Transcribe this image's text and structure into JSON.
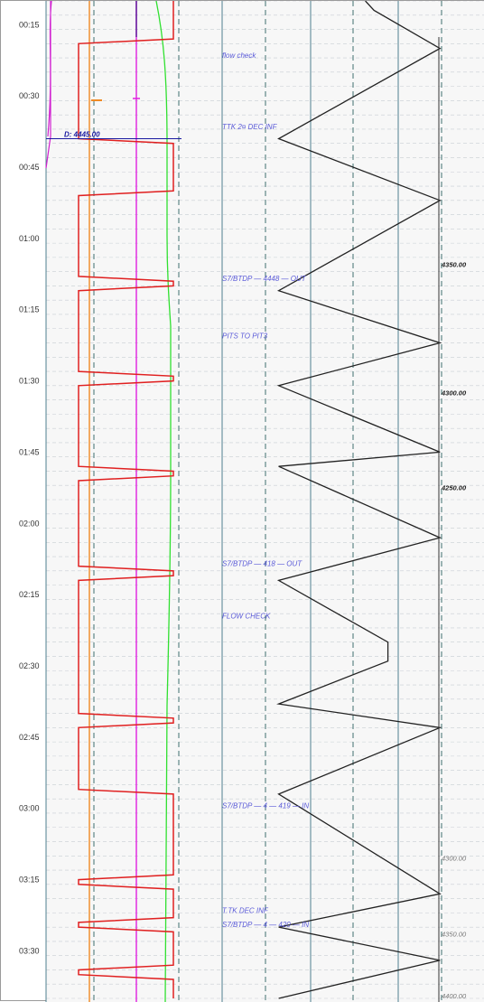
{
  "chart_data": {
    "type": "line",
    "title": "",
    "xlabel": "",
    "ylabel": "",
    "time_axis": {
      "start": "00:10",
      "end": "03:40",
      "tick_labels": [
        "00:15",
        "00:30",
        "00:45",
        "01:00",
        "01:15",
        "01:30",
        "01:45",
        "02:00",
        "02:15",
        "02:30",
        "02:45",
        "03:00",
        "03:15",
        "03:30"
      ]
    },
    "grid": true,
    "annotations": [
      {
        "time": "00:22",
        "text": "flow check"
      },
      {
        "time": "00:37",
        "text": "TTK 2¤ DEC INF"
      },
      {
        "time": "01:09",
        "text": "S7/BTDP — 4448 — OUT"
      },
      {
        "time": "01:21",
        "text": "PITS TO PIT3"
      },
      {
        "time": "02:09",
        "text": "S7/BTDP — 418 — OUT"
      },
      {
        "time": "02:20",
        "text": "FLOW CHECK"
      },
      {
        "time": "03:00",
        "text": "S7/BTDP — 4 — 419 — IN"
      },
      {
        "time": "03:22",
        "text": "T.TK DEC INF"
      },
      {
        "time": "03:25",
        "text": "S7/BTDP — 4 — 420 — IN"
      }
    ],
    "depth_labels": [
      {
        "time": "01:06",
        "text": "4350.00",
        "style": "bold"
      },
      {
        "time": "01:33",
        "text": "4300.00",
        "style": "bold"
      },
      {
        "time": "01:53",
        "text": "4250.00",
        "style": "bold"
      },
      {
        "time": "03:11",
        "text": "4300.00",
        "style": "light"
      },
      {
        "time": "03:27",
        "text": "4350.00",
        "style": "light"
      },
      {
        "time": "03:40",
        "text": "4400.00",
        "style": "light"
      }
    ],
    "marker": {
      "time": "00:39",
      "text": "D: 4445.00"
    },
    "series": [
      {
        "color": "#e02020",
        "x": [
          "00:10",
          "00:18",
          "00:19",
          "00:39",
          "00:40",
          "00:50",
          "00:51",
          "01:08",
          "01:09",
          "01:10",
          "01:11",
          "01:28",
          "01:29",
          "01:30",
          "01:31",
          "01:48",
          "01:49",
          "01:50",
          "01:51",
          "02:09",
          "02:10",
          "02:11",
          "02:12",
          "02:40",
          "02:41",
          "02:42",
          "02:43",
          "02:56",
          "02:57",
          "03:14",
          "03:15",
          "03:16",
          "03:17",
          "03:23",
          "03:24",
          "03:25",
          "03:26",
          "03:33",
          "03:34",
          "03:35",
          "03:36",
          "03:40"
        ],
        "values": [
          0.95,
          0.95,
          0.2,
          0.2,
          0.95,
          0.95,
          0.2,
          0.2,
          0.95,
          0.95,
          0.2,
          0.2,
          0.95,
          0.95,
          0.2,
          0.2,
          0.95,
          0.95,
          0.2,
          0.2,
          0.95,
          0.95,
          0.2,
          0.2,
          0.95,
          0.95,
          0.2,
          0.2,
          0.95,
          0.95,
          0.2,
          0.2,
          0.95,
          0.95,
          0.2,
          0.2,
          0.95,
          0.95,
          0.2,
          0.2,
          0.95,
          0.95
        ]
      },
      {
        "color": "#222222",
        "x": [
          "00:10",
          "00:12",
          "00:20",
          "00:39",
          "00:52",
          "01:11",
          "01:22",
          "01:31",
          "01:45",
          "01:48",
          "02:03",
          "02:12",
          "02:25",
          "02:29",
          "02:38",
          "02:43",
          "02:57",
          "03:18",
          "03:25",
          "03:32",
          "03:40"
        ],
        "values": [
          0.55,
          0.6,
          0.98,
          0.05,
          0.98,
          0.05,
          0.98,
          0.05,
          0.98,
          0.05,
          0.98,
          0.05,
          0.68,
          0.68,
          0.05,
          0.98,
          0.05,
          0.98,
          0.05,
          0.98,
          0.05
        ]
      }
    ]
  }
}
